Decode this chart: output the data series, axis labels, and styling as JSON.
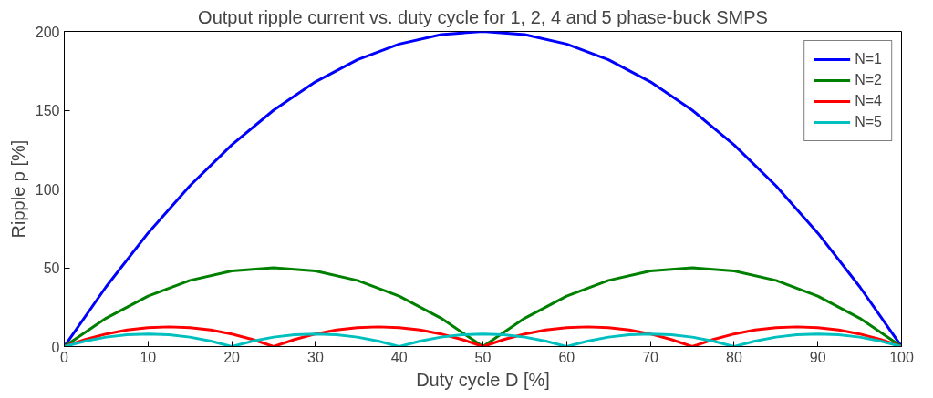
{
  "chart_data": {
    "type": "line",
    "title": "Output ripple current vs. duty cycle for 1, 2, 4 and 5 phase-buck SMPS",
    "xlabel": "Duty cycle D [%]",
    "ylabel": "Ripple p [%]",
    "xlim": [
      0,
      100
    ],
    "ylim": [
      0,
      200
    ],
    "xticks": [
      0,
      10,
      20,
      30,
      40,
      50,
      60,
      70,
      80,
      90,
      100
    ],
    "yticks": [
      0,
      50,
      100,
      150,
      200
    ],
    "grid": false,
    "legend": "top right",
    "line_style": "solid",
    "marker": "none",
    "series": [
      {
        "name": "N=1",
        "color": "#0000ff",
        "x": [
          0,
          5,
          10,
          15,
          20,
          25,
          30,
          35,
          40,
          45,
          50,
          55,
          60,
          65,
          70,
          75,
          80,
          85,
          90,
          95,
          100
        ],
        "values": [
          0,
          38,
          72,
          102,
          128,
          150,
          168,
          182,
          192,
          198,
          200,
          198,
          192,
          182,
          168,
          150,
          128,
          102,
          72,
          38,
          0
        ]
      },
      {
        "name": "N=2",
        "color": "#008000",
        "x": [
          0,
          5,
          10,
          15,
          20,
          25,
          30,
          35,
          40,
          45,
          50,
          55,
          60,
          65,
          70,
          75,
          80,
          85,
          90,
          95,
          100
        ],
        "values": [
          0,
          18,
          32,
          42,
          48,
          50,
          48,
          42,
          32,
          18,
          0,
          18,
          32,
          42,
          48,
          50,
          48,
          42,
          32,
          18,
          0
        ]
      },
      {
        "name": "N=4",
        "color": "#ff0000",
        "x": [
          0,
          2.5,
          5,
          7.5,
          10,
          12.5,
          15,
          17.5,
          20,
          22.5,
          25,
          27.5,
          30,
          32.5,
          35,
          37.5,
          40,
          42.5,
          45,
          47.5,
          50,
          52.5,
          55,
          57.5,
          60,
          62.5,
          65,
          67.5,
          70,
          72.5,
          75,
          77.5,
          80,
          82.5,
          85,
          87.5,
          90,
          92.5,
          95,
          97.5,
          100
        ],
        "values": [
          0,
          4.5,
          8,
          10.5,
          12,
          12.5,
          12,
          10.5,
          8,
          4.5,
          0,
          4.5,
          8,
          10.5,
          12,
          12.5,
          12,
          10.5,
          8,
          4.5,
          0,
          4.5,
          8,
          10.5,
          12,
          12.5,
          12,
          10.5,
          8,
          4.5,
          0,
          4.5,
          8,
          10.5,
          12,
          12.5,
          12,
          10.5,
          8,
          4.5,
          0
        ]
      },
      {
        "name": "N=5",
        "color": "#00bfbf",
        "x": [
          0,
          2.5,
          5,
          7.5,
          10,
          12.5,
          15,
          17.5,
          20,
          22.5,
          25,
          27.5,
          30,
          32.5,
          35,
          37.5,
          40,
          42.5,
          45,
          47.5,
          50,
          52.5,
          55,
          57.5,
          60,
          62.5,
          65,
          67.5,
          70,
          72.5,
          75,
          77.5,
          80,
          82.5,
          85,
          87.5,
          90,
          92.5,
          95,
          97.5,
          100
        ],
        "values": [
          0,
          3.5,
          6,
          7.5,
          8,
          7.5,
          6,
          3.5,
          0,
          3.5,
          6,
          7.5,
          8,
          7.5,
          6,
          3.5,
          0,
          3.5,
          6,
          7.5,
          8,
          7.5,
          6,
          3.5,
          0,
          3.5,
          6,
          7.5,
          8,
          7.5,
          6,
          3.5,
          0,
          3.5,
          6,
          7.5,
          8,
          7.5,
          6,
          3.5,
          0
        ]
      }
    ]
  }
}
